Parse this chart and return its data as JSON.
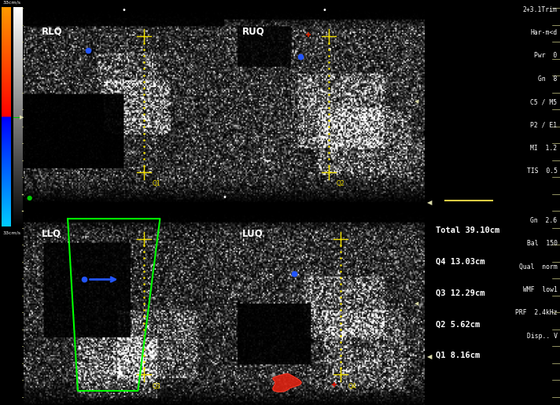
{
  "bg_color": "#000000",
  "fig_width": 7.12,
  "fig_height": 5.15,
  "dpi": 100,
  "quadrant_labels": [
    "RLQ",
    "RUQ",
    "LLQ",
    "LUQ"
  ],
  "measurements": {
    "Total": "39.10cm",
    "Q4": "13.03cm",
    "Q3": "12.29cm",
    "Q2": "5.62cm",
    "Q1": "8.16cm"
  },
  "tech_info_top": [
    "2+3.1Trim",
    "Har-m<d",
    "Pwr  0",
    "Gn  8",
    "C5 / M5",
    "P2 / E1",
    "MI  1.2",
    "TIS  0.5"
  ],
  "tech_info_bottom": [
    "Gn  2.6",
    "Bal  150",
    "Qual  norm",
    "WMF  low1",
    "PRF  2.4kHz",
    "Disp.. V"
  ],
  "color_bar_top_label": "33cm/s",
  "color_bar_bottom_label": "33cm/s"
}
